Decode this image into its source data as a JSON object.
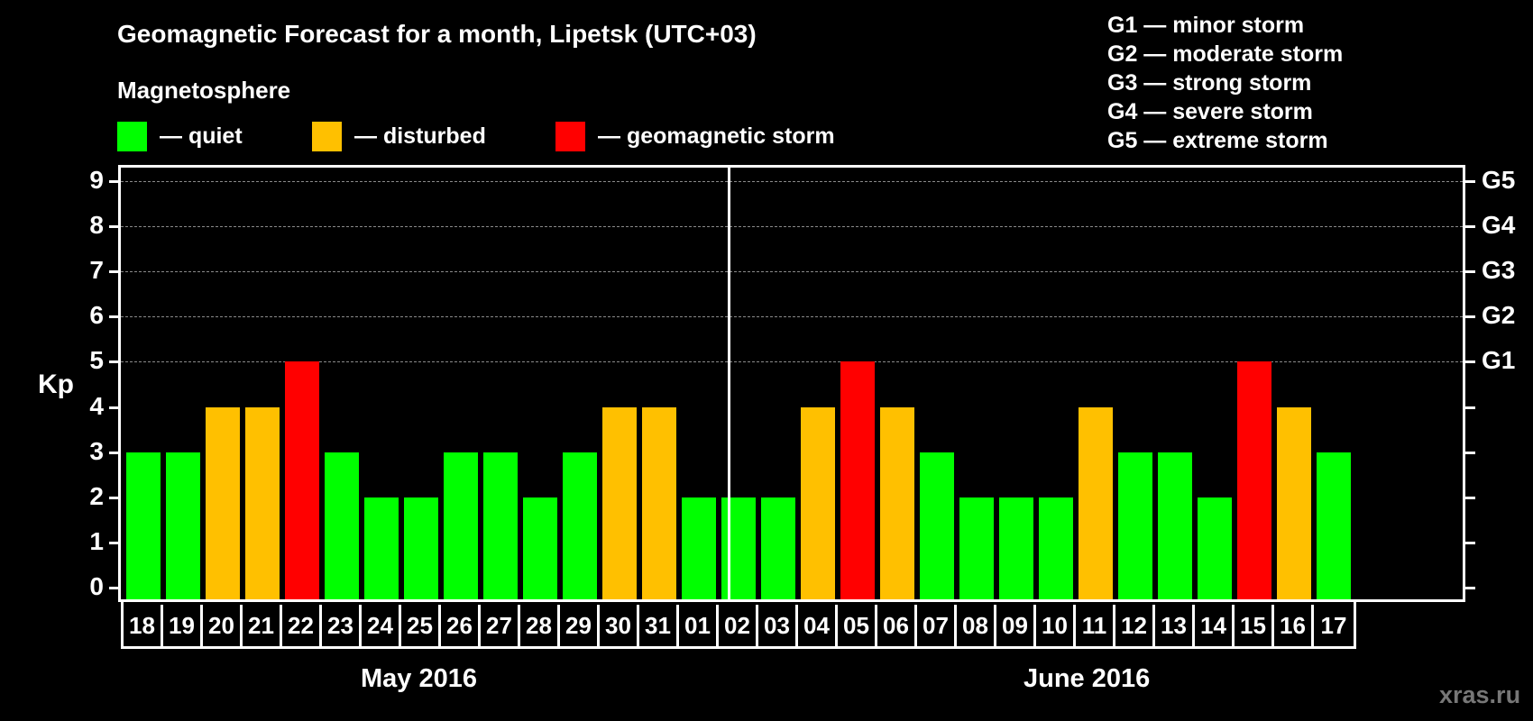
{
  "header": {
    "title": "Geomagnetic Forecast for a month, Lipetsk (UTC+03)",
    "section_label": "Magnetosphere"
  },
  "legend": [
    {
      "label": "— quiet",
      "color": "#00ff00"
    },
    {
      "label": "— disturbed",
      "color": "#ffc000"
    },
    {
      "label": "— geomagnetic storm",
      "color": "#ff0000"
    }
  ],
  "g_scale_legend": [
    "G1 — minor storm",
    "G2 — moderate storm",
    "G3 — strong storm",
    "G4 — severe storm",
    "G5 — extreme storm"
  ],
  "axes": {
    "ylabel": "Kp",
    "yticks": [
      "0",
      "1",
      "2",
      "3",
      "4",
      "5",
      "6",
      "7",
      "8",
      "9"
    ],
    "right_labels": [
      {
        "kp": 5,
        "label": "G1"
      },
      {
        "kp": 6,
        "label": "G2"
      },
      {
        "kp": 7,
        "label": "G3"
      },
      {
        "kp": 8,
        "label": "G4"
      },
      {
        "kp": 9,
        "label": "G5"
      }
    ]
  },
  "months": [
    "May 2016",
    "June 2016"
  ],
  "watermark": "xras.ru",
  "colors": {
    "quiet": "#00ff00",
    "disturbed": "#ffc000",
    "storm": "#ff0000",
    "grid": "#8a8a8a",
    "background": "#000000"
  },
  "chart_data": {
    "type": "bar",
    "title": "Geomagnetic Forecast for a month, Lipetsk (UTC+03)",
    "xlabel": "",
    "ylabel": "Kp",
    "ylim": [
      0,
      9
    ],
    "grid": "dashed horizontal at Kp 5–9",
    "secondary_axis": {
      "5": "G1",
      "6": "G2",
      "7": "G3",
      "8": "G4",
      "9": "G5"
    },
    "legend": [
      "quiet",
      "disturbed",
      "geomagnetic storm"
    ],
    "legend_position": "top",
    "month_groups": [
      {
        "label": "May 2016",
        "days": [
          "18",
          "19",
          "20",
          "21",
          "22",
          "23",
          "24",
          "25",
          "26",
          "27",
          "28",
          "29",
          "30",
          "31"
        ]
      },
      {
        "label": "June 2016",
        "days": [
          "01",
          "02",
          "03",
          "04",
          "05",
          "06",
          "07",
          "08",
          "09",
          "10",
          "11",
          "12",
          "13",
          "14",
          "15",
          "16",
          "17"
        ]
      }
    ],
    "categories": [
      "18",
      "19",
      "20",
      "21",
      "22",
      "23",
      "24",
      "25",
      "26",
      "27",
      "28",
      "29",
      "30",
      "31",
      "01",
      "02",
      "03",
      "04",
      "05",
      "06",
      "07",
      "08",
      "09",
      "10",
      "11",
      "12",
      "13",
      "14",
      "15",
      "16",
      "17"
    ],
    "values": [
      3,
      3,
      4,
      4,
      5,
      3,
      2,
      2,
      3,
      3,
      2,
      3,
      4,
      4,
      2,
      2,
      2,
      4,
      5,
      4,
      3,
      2,
      2,
      2,
      4,
      3,
      3,
      2,
      5,
      4,
      3
    ],
    "status": [
      "quiet",
      "quiet",
      "disturbed",
      "disturbed",
      "storm",
      "quiet",
      "quiet",
      "quiet",
      "quiet",
      "quiet",
      "quiet",
      "quiet",
      "disturbed",
      "disturbed",
      "quiet",
      "quiet",
      "quiet",
      "disturbed",
      "storm",
      "disturbed",
      "quiet",
      "quiet",
      "quiet",
      "quiet",
      "disturbed",
      "quiet",
      "quiet",
      "quiet",
      "storm",
      "disturbed",
      "quiet"
    ]
  }
}
